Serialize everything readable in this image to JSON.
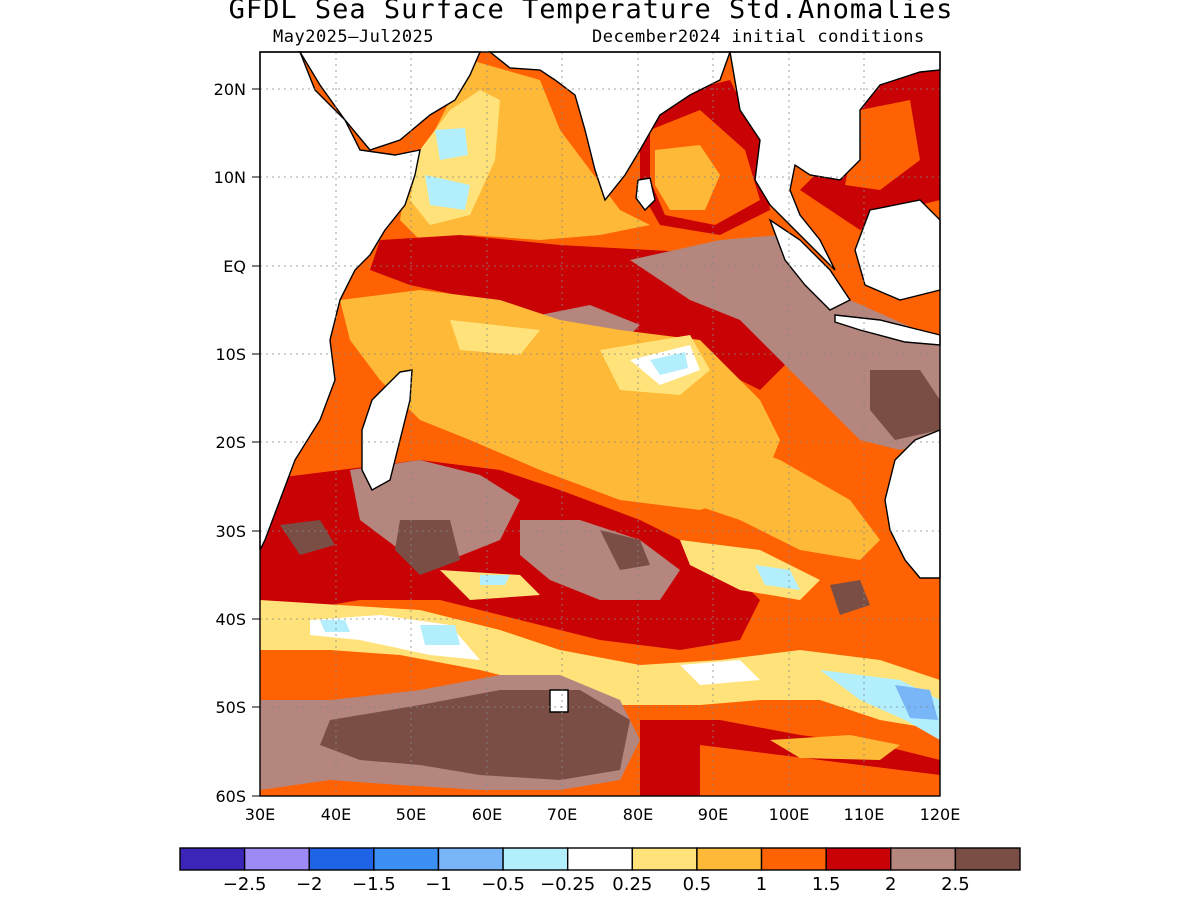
{
  "title": "GFDL Sea Surface Temperature Std.Anomalies",
  "subtitle_left": "May2025–Jul2025",
  "subtitle_right": "December2024 initial conditions",
  "map": {
    "lon_range": [
      30,
      120
    ],
    "lat_range": [
      -60,
      24
    ],
    "x_ticks": [
      "30E",
      "40E",
      "50E",
      "60E",
      "70E",
      "80E",
      "90E",
      "100E",
      "110E",
      "120E"
    ],
    "y_ticks": [
      "20N",
      "10N",
      "EQ",
      "10S",
      "20S",
      "30S",
      "40S",
      "50S",
      "60S"
    ],
    "grid": true
  },
  "colorbar": {
    "colors": [
      "#3a25b8",
      "#9d8af5",
      "#1f64e6",
      "#3c90f3",
      "#79b6f7",
      "#b3eefc",
      "#ffffff",
      "#ffe27a",
      "#ffb938",
      "#ff6203",
      "#c90206",
      "#b4867d",
      "#7a4e45"
    ],
    "labels": [
      "−2.5",
      "−2",
      "−1.5",
      "−1",
      "−0.5",
      "−0.25",
      "0.25",
      "0.5",
      "1",
      "1.5",
      "2",
      "2.5"
    ]
  }
}
